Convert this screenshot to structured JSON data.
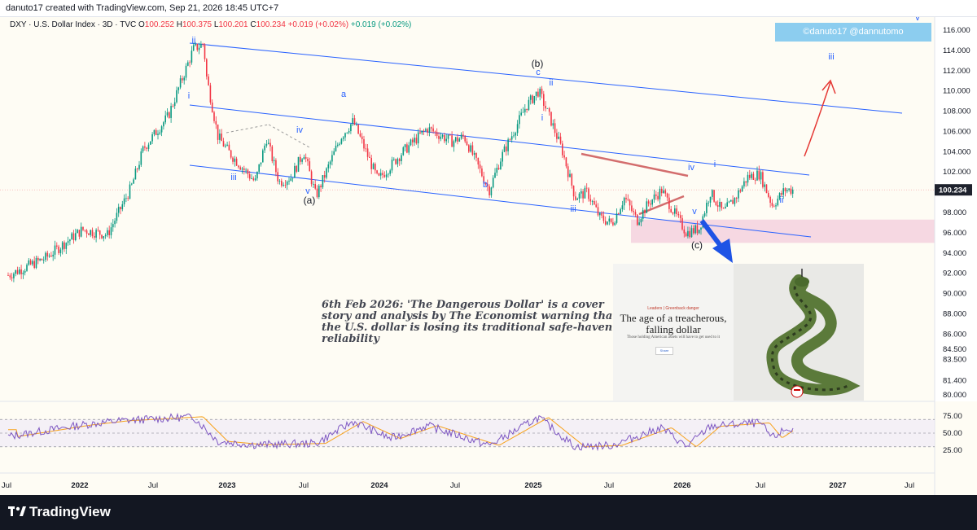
{
  "header": {
    "credit": "danuto17 created with TradingView.com, Sep 21, 2026 18:45 UTC+7"
  },
  "legend": {
    "symbol": "DXY · U.S. Dollar Index · 3D · TVC",
    "open_label": "O",
    "open": "100.252",
    "high_label": "H",
    "high": "100.375",
    "low_label": "L",
    "low": "100.201",
    "close_label": "C",
    "close": "100.234",
    "change": "+0.019 (+0.02%)",
    "change2": "+0.019 (+0.02%)"
  },
  "watermark": "©danuto17   @dannutomo",
  "note": {
    "line1": "6th Feb 2026: 'The Dangerous Dollar' is a cover",
    "line2": "story and analysis by The Economist warning that",
    "line3": "the U.S. dollar is losing its traditional safe-haven",
    "line4": "reliability"
  },
  "magazine": {
    "kicker": "Leaders | Greenback danger",
    "headline_line1": "The age of a treacherous,",
    "headline_line2": "falling dollar",
    "sub": "Those holding American assets will have to get used to it",
    "share": "Share"
  },
  "footer": {
    "brand": "TradingView"
  },
  "colors": {
    "up": "#089981",
    "down": "#f23645",
    "channel": "#2962ff",
    "wave_label": "#2962ff",
    "rsi": "#7e57c2",
    "rsi_ma": "#f7a21b",
    "zone": "#f1c4d8",
    "triangle": "#d36d6d",
    "arrow_red": "#e53935",
    "arrow_blue": "#1e53e5",
    "current_price_bg": "#1e222d"
  },
  "chart_data": [
    {
      "type": "candlestick",
      "series_name": "DXY · U.S. Dollar Index · 3D · TVC",
      "y_ticks": [
        "116.000",
        "114.000",
        "112.000",
        "110.000",
        "108.000",
        "106.000",
        "104.000",
        "102.000",
        "98.000",
        "96.000",
        "94.000",
        "92.000",
        "90.000",
        "88.000",
        "86.000",
        "84.500",
        "83.500",
        "81.400",
        "80.000"
      ],
      "current_price": "100.234",
      "x_ticks": [
        "Jul",
        "2022",
        "Jul",
        "2023",
        "Jul",
        "2024",
        "Jul",
        "2025",
        "Jul",
        "2026",
        "Jul",
        "2027",
        "Jul"
      ],
      "path": [
        [
          "2021-06",
          91.8
        ],
        [
          "2021-09",
          93.5
        ],
        [
          "2021-12",
          96.3
        ],
        [
          "2022-02",
          95.8
        ],
        [
          "2022-04",
          100.5
        ],
        [
          "2022-05",
          104.3
        ],
        [
          "2022-07",
          107.5
        ],
        [
          "2022-09",
          114.1
        ],
        [
          "2022-09-28",
          114.7
        ],
        [
          "2022-10",
          112.0
        ],
        [
          "2022-11",
          105.5
        ],
        [
          "2022-12",
          103.8
        ],
        [
          "2023-02",
          101.0
        ],
        [
          "2023-03",
          105.3
        ],
        [
          "2023-04",
          101.0
        ],
        [
          "2023-05",
          101.5
        ],
        [
          "2023-06",
          104.0
        ],
        [
          "2023-07",
          99.6
        ],
        [
          "2023-09",
          105.5
        ],
        [
          "2023-10",
          107.0
        ],
        [
          "2023-12",
          101.2
        ],
        [
          "2024-02",
          104.0
        ],
        [
          "2024-04",
          106.3
        ],
        [
          "2024-06",
          105.0
        ],
        [
          "2024-07",
          105.5
        ],
        [
          "2024-09",
          100.2
        ],
        [
          "2024-10",
          103.5
        ],
        [
          "2024-12",
          108.5
        ],
        [
          "2025-01",
          110.0
        ],
        [
          "2025-02",
          107.0
        ],
        [
          "2025-03",
          104.0
        ],
        [
          "2025-04",
          99.5
        ],
        [
          "2025-05",
          100.0
        ],
        [
          "2025-06",
          97.5
        ],
        [
          "2025-07",
          96.9
        ],
        [
          "2025-08",
          99.5
        ],
        [
          "2025-09",
          97.2
        ],
        [
          "2025-10",
          99.0
        ],
        [
          "2025-11",
          100.2
        ],
        [
          "2025-12",
          98.0
        ],
        [
          "2026-01",
          96.0
        ],
        [
          "2026-02",
          96.4
        ],
        [
          "2026-03",
          100.0
        ],
        [
          "2026-04",
          98.0
        ],
        [
          "2026-05",
          99.4
        ],
        [
          "2026-06",
          101.5
        ],
        [
          "2026-07",
          101.8
        ],
        [
          "2026-08",
          98.7
        ],
        [
          "2026-09",
          100.234
        ]
      ],
      "wave_labels": [
        "ii",
        "i",
        "iii",
        "iv",
        "v",
        "(a)",
        "a",
        "b",
        "(b)",
        "c",
        "ii",
        "i",
        "iii",
        "iv",
        "i",
        "v",
        "(c)",
        "ii",
        "iii",
        "v"
      ],
      "demand_zone": [
        95.0,
        97.3
      ]
    },
    {
      "type": "line",
      "name": "RSI",
      "y_ticks": [
        "75.00",
        "50.00",
        "25.00"
      ],
      "bands": [
        30,
        70
      ],
      "path": [
        [
          "2021-06",
          45
        ],
        [
          "2021-12",
          62
        ],
        [
          "2022-03",
          68
        ],
        [
          "2022-09",
          74
        ],
        [
          "2022-11",
          38
        ],
        [
          "2023-02",
          33
        ],
        [
          "2023-07",
          35
        ],
        [
          "2023-10",
          67
        ],
        [
          "2024-01",
          42
        ],
        [
          "2024-04",
          61
        ],
        [
          "2024-09",
          32
        ],
        [
          "2025-01",
          73
        ],
        [
          "2025-04",
          30
        ],
        [
          "2025-07",
          32
        ],
        [
          "2025-11",
          58
        ],
        [
          "2026-01",
          30
        ],
        [
          "2026-03",
          60
        ],
        [
          "2026-07",
          65
        ],
        [
          "2026-08",
          43
        ],
        [
          "2026-09",
          55
        ]
      ]
    }
  ]
}
